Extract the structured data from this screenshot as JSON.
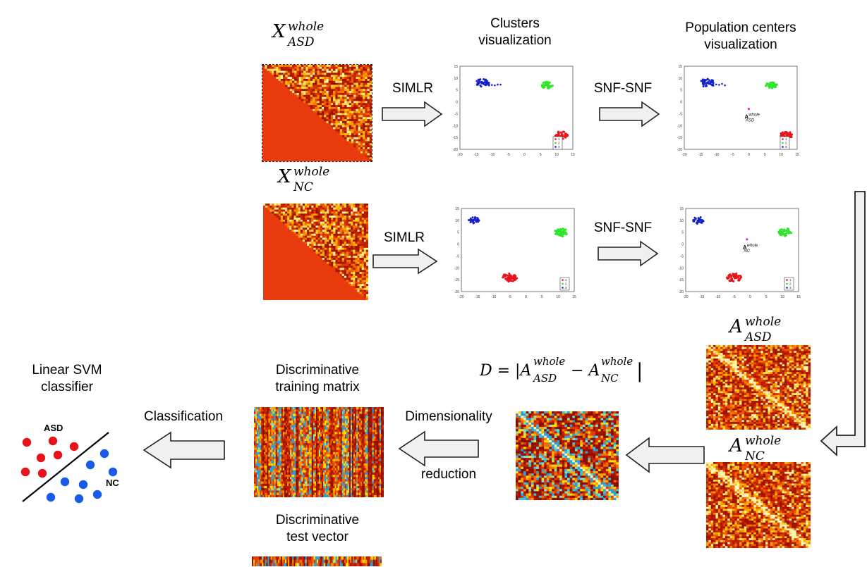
{
  "top": {
    "x_asd": {
      "base": "X",
      "sup": "whole",
      "sub": "ASD"
    },
    "x_nc": {
      "base": "X",
      "sup": "whole",
      "sub": "NC"
    },
    "clusters_title": "Clusters\nvisualization",
    "centers_title": "Population centers\nvisualization",
    "simlr_1": "SIMLR",
    "simlr_2": "SIMLR",
    "snf_1": "SNF-SNF",
    "snf_2": "SNF-SNF"
  },
  "plots": {
    "x_ticks": [
      "-20",
      "-15",
      "-10",
      "-5",
      "0",
      "5",
      "10",
      "15"
    ],
    "y_ticks": [
      "15",
      "10",
      "5",
      "0",
      "-5",
      "-10",
      "-15",
      "-20"
    ],
    "legend": [
      "1",
      "2",
      "3"
    ],
    "center_asd_label": {
      "base": "A",
      "sup": "whole",
      "sub": "ASD"
    },
    "center_nc_label": {
      "base": "A",
      "sup": "whole",
      "sub": "NC"
    },
    "cluster_colors": {
      "red": "#e8141c",
      "green": "#2ee62a",
      "blue": "#1320c8",
      "magenta": "#e020d8"
    }
  },
  "bottom": {
    "a_asd": {
      "base": "A",
      "sup": "whole",
      "sub": "ASD"
    },
    "a_nc": {
      "base": "A",
      "sup": "whole",
      "sub": "NC"
    },
    "d_eq_left": "D = |A",
    "d_eq_minus": " − A",
    "d_eq_sup": "whole",
    "d_eq_sub_asd": "ASD",
    "d_eq_sub_nc": "NC",
    "dim_top": "Dimensionality",
    "dim_bottom": "reduction",
    "train_title": "Discriminative\ntraining matrix",
    "test_title": "Discriminative\ntest vector",
    "classification": "Classification",
    "svm_title": "Linear SVM\nclassifier",
    "asd_label": "ASD",
    "nc_label": "NC",
    "class_colors": {
      "asd": "#e8141c",
      "nc": "#1a5ae8"
    }
  }
}
